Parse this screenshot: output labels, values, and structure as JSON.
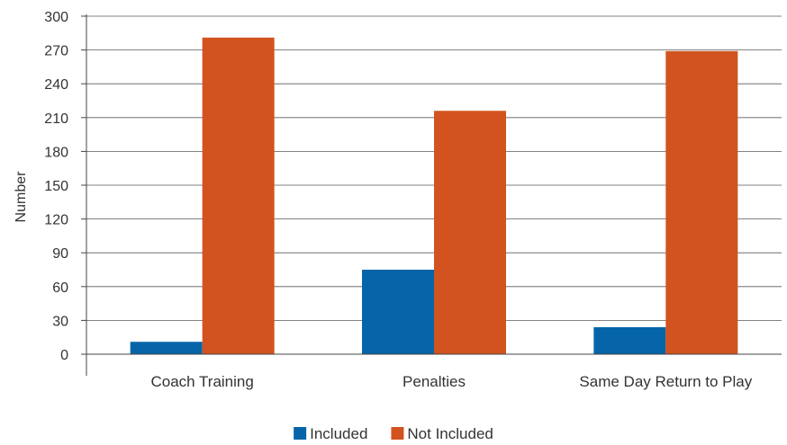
{
  "chart_data": {
    "type": "bar",
    "title": "",
    "xlabel": "",
    "ylabel": "Number",
    "ylim": [
      0,
      300
    ],
    "yticks": [
      0,
      30,
      60,
      90,
      120,
      150,
      180,
      210,
      240,
      270,
      300
    ],
    "grid": true,
    "legend_position": "bottom",
    "categories": [
      "Coach Training",
      "Penalties",
      "Same Day Return to Play"
    ],
    "series": [
      {
        "name": "Included",
        "color": "#0565a8",
        "values": [
          11,
          75,
          24
        ]
      },
      {
        "name": "Not Included",
        "color": "#d2531f",
        "values": [
          281,
          216,
          269
        ]
      }
    ]
  }
}
